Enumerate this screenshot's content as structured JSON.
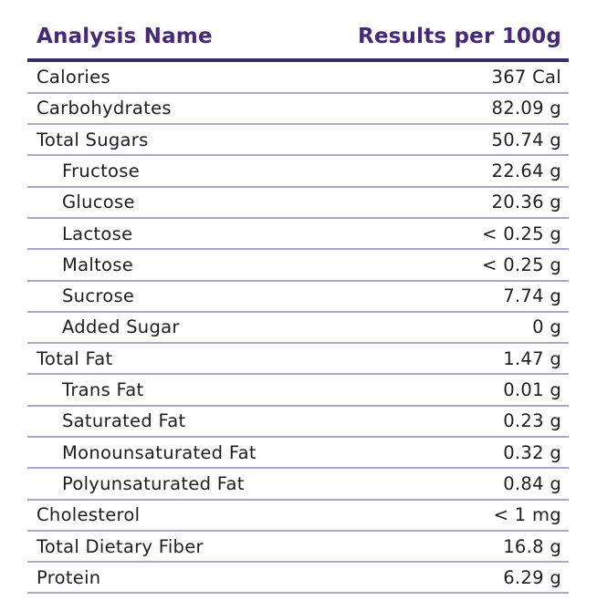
{
  "table": {
    "columns": [
      {
        "label": "Analysis Name"
      },
      {
        "label": "Results per 100g"
      }
    ],
    "rows": [
      {
        "name": "Calories",
        "value": "367 Cal",
        "indent": false
      },
      {
        "name": "Carbohydrates",
        "value": "82.09 g",
        "indent": false
      },
      {
        "name": "Total Sugars",
        "value": "50.74 g",
        "indent": false
      },
      {
        "name": "Fructose",
        "value": "22.64 g",
        "indent": true
      },
      {
        "name": "Glucose",
        "value": "20.36 g",
        "indent": true
      },
      {
        "name": "Lactose",
        "value": "< 0.25 g",
        "indent": true
      },
      {
        "name": "Maltose",
        "value": "< 0.25 g",
        "indent": true
      },
      {
        "name": "Sucrose",
        "value": "7.74 g",
        "indent": true
      },
      {
        "name": "Added Sugar",
        "value": "0 g",
        "indent": true
      },
      {
        "name": "Total Fat",
        "value": "1.47 g",
        "indent": false
      },
      {
        "name": "Trans Fat",
        "value": "0.01 g",
        "indent": true
      },
      {
        "name": "Saturated Fat",
        "value": "0.23 g",
        "indent": true
      },
      {
        "name": "Monounsaturated Fat",
        "value": "0.32 g",
        "indent": true
      },
      {
        "name": "Polyunsaturated Fat",
        "value": "0.84 g",
        "indent": true
      },
      {
        "name": "Cholesterol",
        "value": "< 1 mg",
        "indent": false
      },
      {
        "name": "Total Dietary Fiber",
        "value": "16.8 g",
        "indent": false
      },
      {
        "name": "Protein",
        "value": "6.29 g",
        "indent": false
      }
    ],
    "colors": {
      "header_text": "#452878",
      "header_rule": "#3D2A6E",
      "row_divider": "#ACA5C6",
      "row_text": "#1D1D1F",
      "background": "#FFFFFF"
    }
  }
}
